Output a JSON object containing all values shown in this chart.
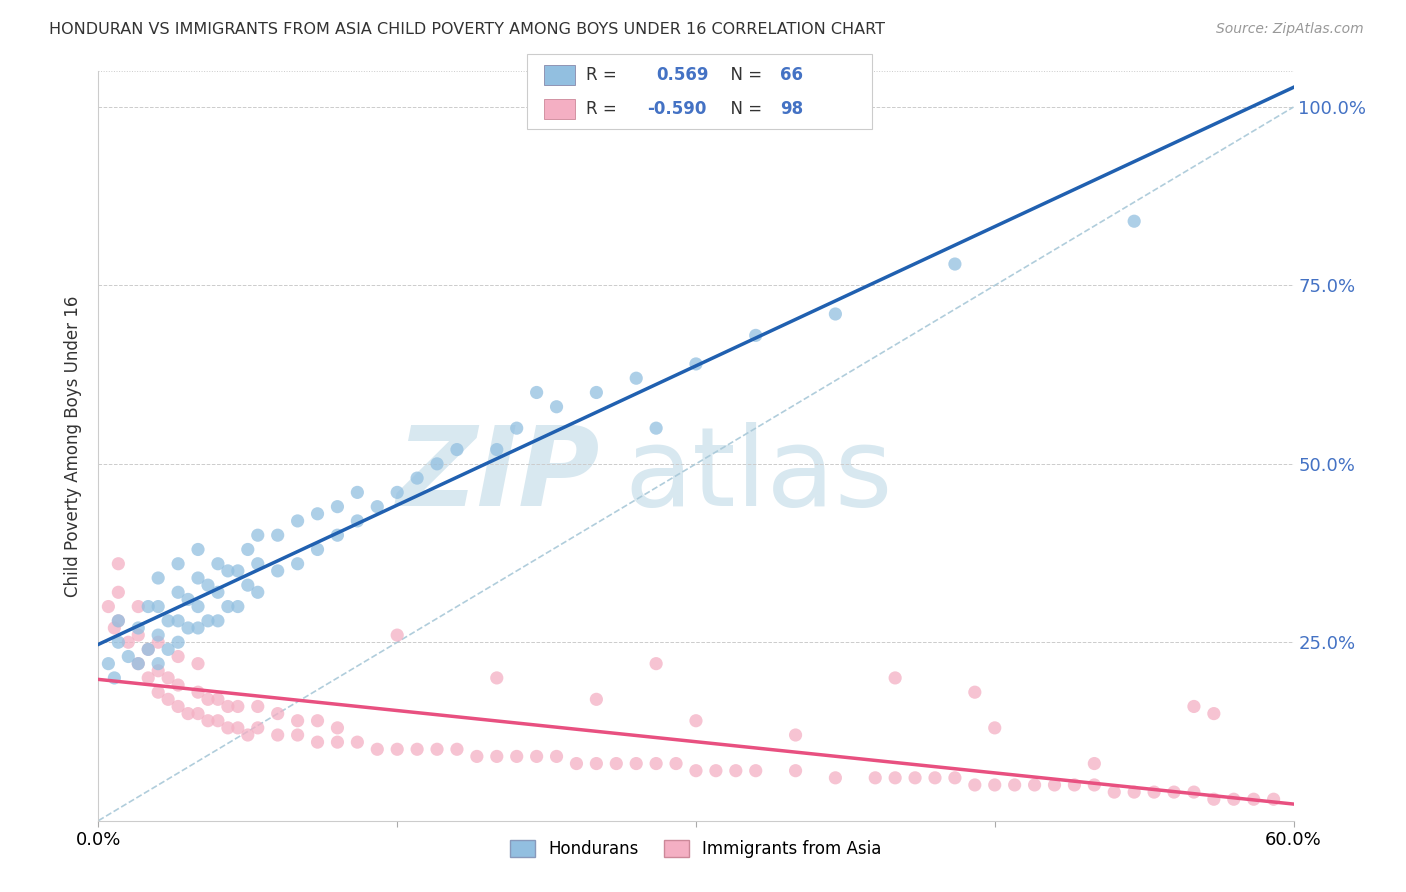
{
  "title": "HONDURAN VS IMMIGRANTS FROM ASIA CHILD POVERTY AMONG BOYS UNDER 16 CORRELATION CHART",
  "source": "Source: ZipAtlas.com",
  "ylabel": "Child Poverty Among Boys Under 16",
  "ytick_vals": [
    0.0,
    0.25,
    0.5,
    0.75,
    1.0
  ],
  "ytick_labels": [
    "",
    "25.0%",
    "50.0%",
    "75.0%",
    "100.0%"
  ],
  "xlim": [
    0.0,
    0.6
  ],
  "ylim": [
    0.0,
    1.05
  ],
  "blue_R": 0.569,
  "blue_N": 66,
  "pink_R": -0.59,
  "pink_N": 98,
  "blue_color": "#92bfe0",
  "pink_color": "#f4afc3",
  "blue_line_color": "#2060b0",
  "pink_line_color": "#e85080",
  "diagonal_color": "#a8c8d8",
  "legend_label_blue": "Hondurans",
  "legend_label_pink": "Immigrants from Asia",
  "blue_scatter_x": [
    0.005,
    0.008,
    0.01,
    0.01,
    0.015,
    0.02,
    0.02,
    0.025,
    0.025,
    0.03,
    0.03,
    0.03,
    0.03,
    0.035,
    0.035,
    0.04,
    0.04,
    0.04,
    0.04,
    0.045,
    0.045,
    0.05,
    0.05,
    0.05,
    0.05,
    0.055,
    0.055,
    0.06,
    0.06,
    0.06,
    0.065,
    0.065,
    0.07,
    0.07,
    0.075,
    0.075,
    0.08,
    0.08,
    0.08,
    0.09,
    0.09,
    0.1,
    0.1,
    0.11,
    0.11,
    0.12,
    0.12,
    0.13,
    0.13,
    0.14,
    0.15,
    0.16,
    0.17,
    0.18,
    0.2,
    0.21,
    0.23,
    0.25,
    0.27,
    0.3,
    0.33,
    0.37,
    0.22,
    0.28,
    0.43,
    0.52
  ],
  "blue_scatter_y": [
    0.22,
    0.2,
    0.25,
    0.28,
    0.23,
    0.22,
    0.27,
    0.24,
    0.3,
    0.22,
    0.26,
    0.3,
    0.34,
    0.24,
    0.28,
    0.25,
    0.28,
    0.32,
    0.36,
    0.27,
    0.31,
    0.27,
    0.3,
    0.34,
    0.38,
    0.28,
    0.33,
    0.28,
    0.32,
    0.36,
    0.3,
    0.35,
    0.3,
    0.35,
    0.33,
    0.38,
    0.32,
    0.36,
    0.4,
    0.35,
    0.4,
    0.36,
    0.42,
    0.38,
    0.43,
    0.4,
    0.44,
    0.42,
    0.46,
    0.44,
    0.46,
    0.48,
    0.5,
    0.52,
    0.52,
    0.55,
    0.58,
    0.6,
    0.62,
    0.64,
    0.68,
    0.71,
    0.6,
    0.55,
    0.78,
    0.84
  ],
  "pink_scatter_x": [
    0.005,
    0.008,
    0.01,
    0.01,
    0.01,
    0.015,
    0.02,
    0.02,
    0.02,
    0.025,
    0.025,
    0.03,
    0.03,
    0.03,
    0.035,
    0.035,
    0.04,
    0.04,
    0.04,
    0.045,
    0.05,
    0.05,
    0.05,
    0.055,
    0.055,
    0.06,
    0.06,
    0.065,
    0.065,
    0.07,
    0.07,
    0.075,
    0.08,
    0.08,
    0.09,
    0.09,
    0.1,
    0.1,
    0.11,
    0.11,
    0.12,
    0.12,
    0.13,
    0.14,
    0.15,
    0.16,
    0.17,
    0.18,
    0.19,
    0.2,
    0.21,
    0.22,
    0.23,
    0.24,
    0.25,
    0.26,
    0.27,
    0.28,
    0.29,
    0.3,
    0.31,
    0.32,
    0.33,
    0.35,
    0.37,
    0.39,
    0.4,
    0.41,
    0.42,
    0.43,
    0.44,
    0.45,
    0.46,
    0.47,
    0.48,
    0.49,
    0.5,
    0.51,
    0.52,
    0.53,
    0.54,
    0.55,
    0.56,
    0.57,
    0.58,
    0.59,
    0.2,
    0.25,
    0.3,
    0.35,
    0.4,
    0.45,
    0.5,
    0.55,
    0.15,
    0.28,
    0.44,
    0.56
  ],
  "pink_scatter_y": [
    0.3,
    0.27,
    0.28,
    0.32,
    0.36,
    0.25,
    0.22,
    0.26,
    0.3,
    0.2,
    0.24,
    0.18,
    0.21,
    0.25,
    0.17,
    0.2,
    0.16,
    0.19,
    0.23,
    0.15,
    0.15,
    0.18,
    0.22,
    0.14,
    0.17,
    0.14,
    0.17,
    0.13,
    0.16,
    0.13,
    0.16,
    0.12,
    0.13,
    0.16,
    0.12,
    0.15,
    0.12,
    0.14,
    0.11,
    0.14,
    0.11,
    0.13,
    0.11,
    0.1,
    0.1,
    0.1,
    0.1,
    0.1,
    0.09,
    0.09,
    0.09,
    0.09,
    0.09,
    0.08,
    0.08,
    0.08,
    0.08,
    0.08,
    0.08,
    0.07,
    0.07,
    0.07,
    0.07,
    0.07,
    0.06,
    0.06,
    0.06,
    0.06,
    0.06,
    0.06,
    0.05,
    0.05,
    0.05,
    0.05,
    0.05,
    0.05,
    0.05,
    0.04,
    0.04,
    0.04,
    0.04,
    0.04,
    0.03,
    0.03,
    0.03,
    0.03,
    0.2,
    0.17,
    0.14,
    0.12,
    0.2,
    0.13,
    0.08,
    0.16,
    0.26,
    0.22,
    0.18,
    0.15
  ]
}
